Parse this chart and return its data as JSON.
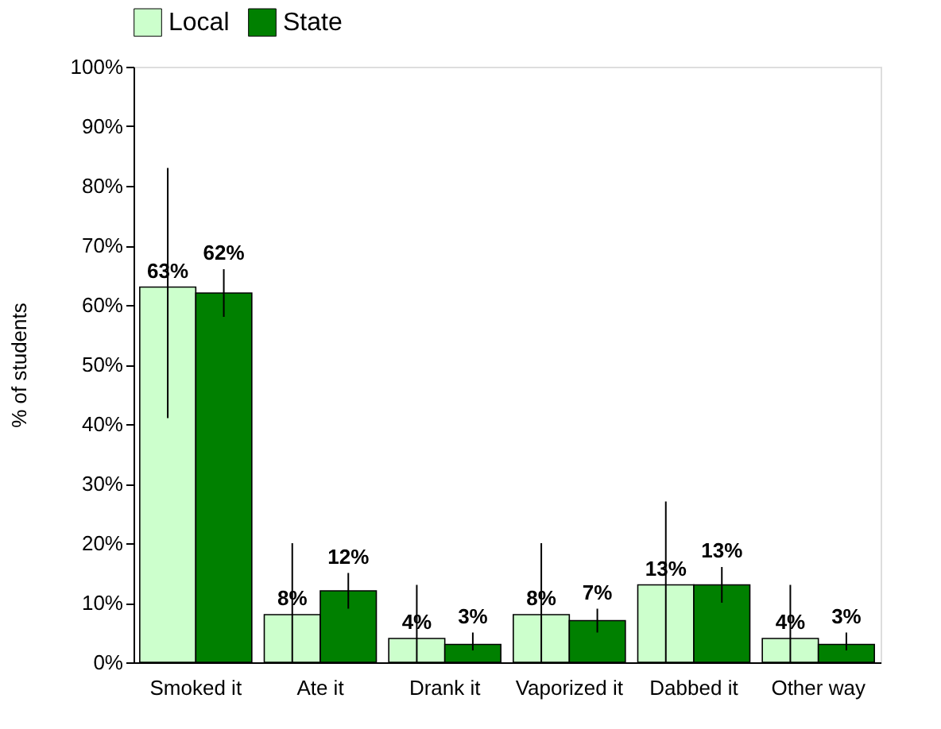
{
  "chart_data": {
    "type": "bar",
    "ylabel": "% of students",
    "categories": [
      "Smoked it",
      "Ate it",
      "Drank it",
      "Vaporized it",
      "Dabbed it",
      "Other way"
    ],
    "series": [
      {
        "name": "Local",
        "color": "#ccffcc",
        "values": [
          63,
          8,
          4,
          8,
          13,
          4
        ],
        "value_labels": [
          "63%",
          "8%",
          "4%",
          "8%",
          "13%",
          "4%"
        ],
        "errors": [
          [
            41,
            83
          ],
          [
            0,
            20
          ],
          [
            0,
            13
          ],
          [
            0,
            20
          ],
          [
            0,
            27
          ],
          [
            0,
            13
          ]
        ]
      },
      {
        "name": "State",
        "color": "#008000",
        "values": [
          62,
          12,
          3,
          7,
          13,
          3
        ],
        "value_labels": [
          "62%",
          "12%",
          "3%",
          "7%",
          "13%",
          "3%"
        ],
        "errors": [
          [
            58,
            66
          ],
          [
            9,
            15
          ],
          [
            2,
            5
          ],
          [
            5,
            9
          ],
          [
            10,
            16
          ],
          [
            2,
            5
          ]
        ]
      }
    ],
    "ylim": [
      0,
      100
    ],
    "yticks": [
      {
        "value": 0,
        "label": "0%"
      },
      {
        "value": 10,
        "label": "10%"
      },
      {
        "value": 20,
        "label": "20%"
      },
      {
        "value": 30,
        "label": "30%"
      },
      {
        "value": 40,
        "label": "40%"
      },
      {
        "value": 50,
        "label": "50%"
      },
      {
        "value": 60,
        "label": "60%"
      },
      {
        "value": 70,
        "label": "70%"
      },
      {
        "value": 80,
        "label": "80%"
      },
      {
        "value": 90,
        "label": "90%"
      },
      {
        "value": 100,
        "label": "100%"
      }
    ],
    "legend": "top",
    "grid": false
  }
}
